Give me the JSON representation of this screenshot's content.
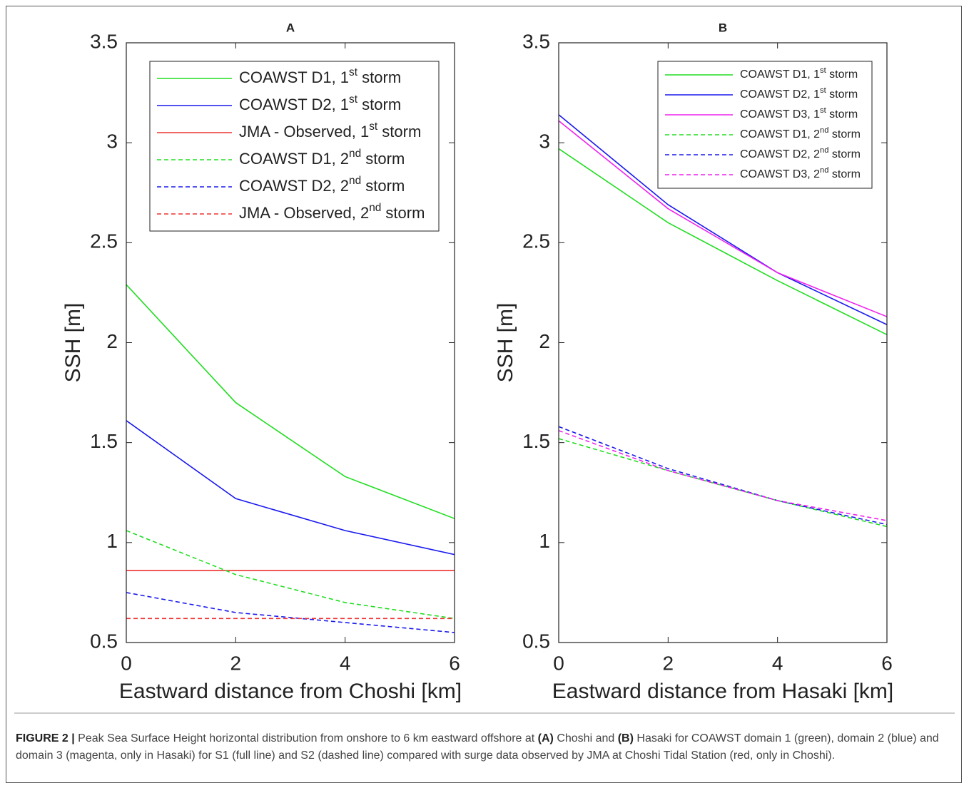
{
  "chart_data": [
    {
      "type": "line",
      "title": "A",
      "x_label": "Eastward distance from Choshi [km]",
      "y_label": "SSH [m]",
      "x": [
        0,
        2,
        4,
        6
      ],
      "xlim": [
        0,
        6
      ],
      "xticks": [
        0,
        2,
        4,
        6
      ],
      "ylim": [
        0.5,
        3.5
      ],
      "yticks": [
        0.5,
        1,
        1.5,
        2,
        2.5,
        3,
        3.5
      ],
      "series": [
        {
          "name": "COAWST D1, 1st storm",
          "color": "#22dd22",
          "style": "solid",
          "values": [
            2.29,
            1.7,
            1.33,
            1.12
          ]
        },
        {
          "name": "COAWST D2, 1st storm",
          "color": "#1a1aee",
          "style": "solid",
          "values": [
            1.61,
            1.22,
            1.06,
            0.94
          ]
        },
        {
          "name": "JMA - Observed, 1st storm",
          "color": "#ee3333",
          "style": "solid",
          "values": [
            0.86,
            0.86,
            0.86,
            0.86
          ]
        },
        {
          "name": "COAWST D1, 2nd storm",
          "color": "#22dd22",
          "style": "dashed",
          "values": [
            1.06,
            0.84,
            0.7,
            0.62
          ]
        },
        {
          "name": "COAWST D2, 2nd storm",
          "color": "#1a1aee",
          "style": "dashed",
          "values": [
            0.75,
            0.65,
            0.6,
            0.55
          ]
        },
        {
          "name": "JMA - Observed, 2nd storm",
          "color": "#ee3333",
          "style": "dashed",
          "values": [
            0.62,
            0.62,
            0.62,
            0.62
          ]
        }
      ]
    },
    {
      "type": "line",
      "title": "B",
      "x_label": "Eastward distance from Hasaki [km]",
      "y_label": "SSH [m]",
      "x": [
        0,
        2,
        4,
        6
      ],
      "xlim": [
        0,
        6
      ],
      "xticks": [
        0,
        2,
        4,
        6
      ],
      "ylim": [
        0.5,
        3.5
      ],
      "yticks": [
        0.5,
        1,
        1.5,
        2,
        2.5,
        3,
        3.5
      ],
      "series": [
        {
          "name": "COAWST D1, 1st storm",
          "color": "#22dd22",
          "style": "solid",
          "values": [
            2.97,
            2.6,
            2.31,
            2.04
          ]
        },
        {
          "name": "COAWST D2, 1st storm",
          "color": "#1a1aee",
          "style": "solid",
          "values": [
            3.14,
            2.69,
            2.35,
            2.09
          ]
        },
        {
          "name": "COAWST D3, 1st storm",
          "color": "#ee22ee",
          "style": "solid",
          "values": [
            3.11,
            2.67,
            2.35,
            2.13
          ]
        },
        {
          "name": "COAWST D1, 2nd storm",
          "color": "#22dd22",
          "style": "dashed",
          "values": [
            1.52,
            1.36,
            1.21,
            1.08
          ]
        },
        {
          "name": "COAWST D2, 2nd storm",
          "color": "#1a1aee",
          "style": "dashed",
          "values": [
            1.58,
            1.37,
            1.21,
            1.09
          ]
        },
        {
          "name": "COAWST D3, 2nd storm",
          "color": "#ee22ee",
          "style": "dashed",
          "values": [
            1.56,
            1.36,
            1.21,
            1.11
          ]
        }
      ]
    }
  ],
  "caption": [
    {
      "text": "FIGURE 2 |",
      "bold": true
    },
    {
      "text": " Peak Sea Surface Height horizontal distribution from onshore to 6 km eastward offshore at ",
      "bold": false
    },
    {
      "text": "(A)",
      "bold": true
    },
    {
      "text": " Choshi and ",
      "bold": false
    },
    {
      "text": "(B)",
      "bold": true
    },
    {
      "text": " Hasaki for COAWST domain 1 (green), domain 2 (blue) and domain 3 (magenta, only in Hasaki) for S1 (full line) and S2 (dashed line) compared with surge data observed by JMA at Choshi Tidal Station (red, only in Choshi).",
      "bold": false
    }
  ]
}
